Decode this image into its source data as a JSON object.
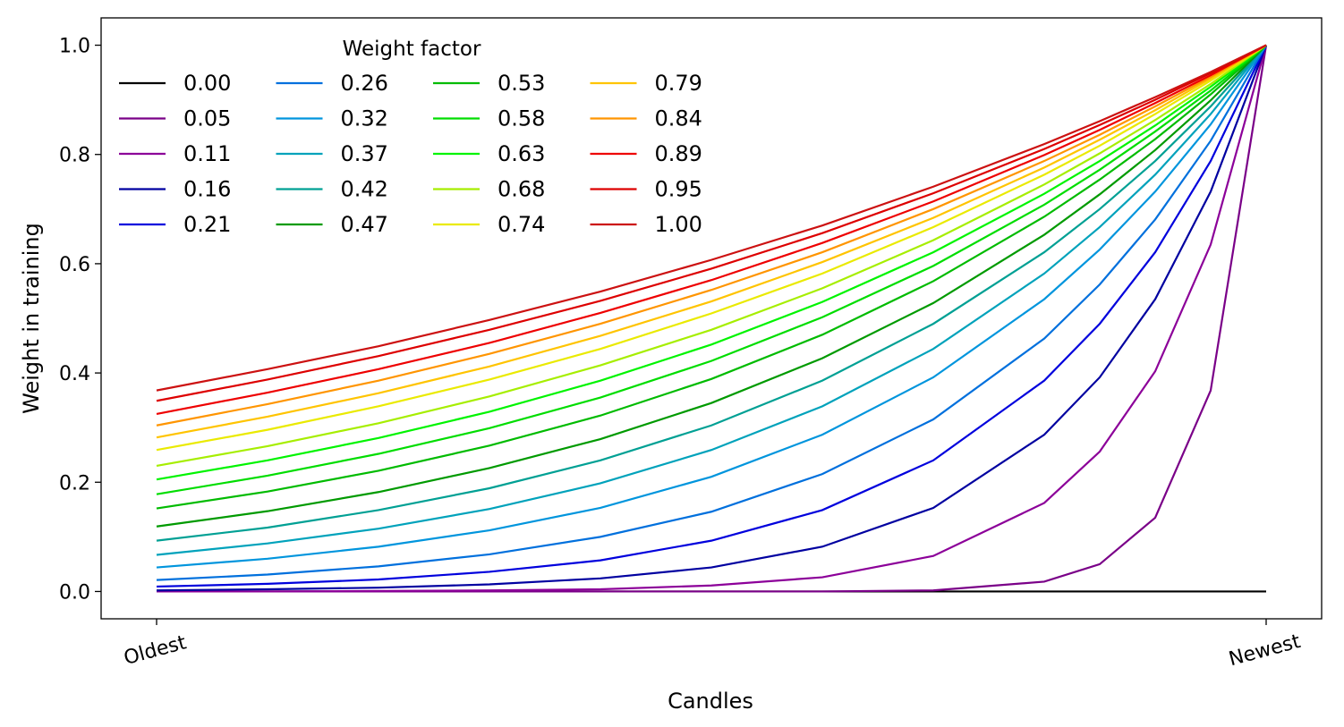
{
  "chart_data": {
    "type": "line",
    "xlabel": "Candles",
    "ylabel": "Weight in training",
    "legend_title": "Weight factor",
    "legend": "upper left",
    "legend_columns": 4,
    "x": [
      0,
      0.1,
      0.2,
      0.3,
      0.4,
      0.5,
      0.6,
      0.7,
      0.8,
      0.85,
      0.9,
      0.95,
      1
    ],
    "xlim": [
      -0.05,
      1.05
    ],
    "xticks": [
      {
        "value": 0,
        "label": "Oldest"
      },
      {
        "value": 1,
        "label": "Newest"
      }
    ],
    "ylim": [
      -0.05,
      1.05
    ],
    "yticks": [
      {
        "value": 0,
        "label": "0.0"
      },
      {
        "value": 0.2,
        "label": "0.2"
      },
      {
        "value": 0.4,
        "label": "0.4"
      },
      {
        "value": 0.6,
        "label": "0.6"
      },
      {
        "value": 0.8,
        "label": "0.8"
      },
      {
        "value": 1,
        "label": "1.0"
      }
    ],
    "series": [
      {
        "name": "0.00",
        "color": "#000000",
        "values": [
          0,
          0,
          0,
          0,
          0,
          0,
          0,
          0,
          0,
          0,
          0,
          0,
          0
        ]
      },
      {
        "name": "0.05",
        "color": "#7a0088",
        "values": [
          0,
          0,
          0,
          0,
          0,
          0,
          0,
          0.002,
          0.018,
          0.05,
          0.135,
          0.368,
          1
        ]
      },
      {
        "name": "0.11",
        "color": "#8c0099",
        "values": [
          0,
          0,
          0.001,
          0.002,
          0.004,
          0.011,
          0.026,
          0.065,
          0.162,
          0.256,
          0.403,
          0.635,
          1
        ]
      },
      {
        "name": "0.16",
        "color": "#0000a0",
        "values": [
          0.002,
          0.004,
          0.007,
          0.013,
          0.024,
          0.044,
          0.082,
          0.153,
          0.287,
          0.392,
          0.535,
          0.732,
          1
        ]
      },
      {
        "name": "0.21",
        "color": "#0000dd",
        "values": [
          0.009,
          0.014,
          0.022,
          0.036,
          0.057,
          0.093,
          0.149,
          0.24,
          0.386,
          0.49,
          0.621,
          0.788,
          1
        ]
      },
      {
        "name": "0.26",
        "color": "#0070dd",
        "values": [
          0.021,
          0.031,
          0.046,
          0.068,
          0.1,
          0.146,
          0.215,
          0.315,
          0.463,
          0.562,
          0.681,
          0.825,
          1
        ]
      },
      {
        "name": "0.32",
        "color": "#0095dd",
        "values": [
          0.044,
          0.06,
          0.082,
          0.112,
          0.153,
          0.21,
          0.287,
          0.392,
          0.535,
          0.626,
          0.732,
          0.855,
          1
        ]
      },
      {
        "name": "0.37",
        "color": "#00a2bb",
        "values": [
          0.067,
          0.088,
          0.115,
          0.151,
          0.198,
          0.259,
          0.339,
          0.444,
          0.582,
          0.667,
          0.763,
          0.874,
          1
        ]
      },
      {
        "name": "0.42",
        "color": "#00a094",
        "values": [
          0.093,
          0.117,
          0.149,
          0.189,
          0.24,
          0.304,
          0.386,
          0.49,
          0.621,
          0.7,
          0.788,
          0.888,
          1
        ]
      },
      {
        "name": "0.47",
        "color": "#009a00",
        "values": [
          0.119,
          0.147,
          0.182,
          0.226,
          0.279,
          0.345,
          0.427,
          0.528,
          0.653,
          0.727,
          0.808,
          0.899,
          1
        ]
      },
      {
        "name": "0.53",
        "color": "#00bb00",
        "values": [
          0.152,
          0.183,
          0.221,
          0.267,
          0.322,
          0.389,
          0.47,
          0.568,
          0.686,
          0.754,
          0.828,
          0.91,
          1
        ]
      },
      {
        "name": "0.58",
        "color": "#00dd00",
        "values": [
          0.178,
          0.212,
          0.252,
          0.299,
          0.355,
          0.422,
          0.502,
          0.596,
          0.708,
          0.772,
          0.842,
          0.917,
          1
        ]
      },
      {
        "name": "0.63",
        "color": "#00f400",
        "values": [
          0.205,
          0.24,
          0.281,
          0.329,
          0.386,
          0.452,
          0.53,
          0.621,
          0.728,
          0.788,
          0.853,
          0.924,
          1
        ]
      },
      {
        "name": "0.68",
        "color": "#a6ee00",
        "values": [
          0.23,
          0.266,
          0.308,
          0.357,
          0.414,
          0.479,
          0.555,
          0.643,
          0.745,
          0.802,
          0.863,
          0.929,
          1
        ]
      },
      {
        "name": "0.74",
        "color": "#eaea00",
        "values": [
          0.259,
          0.296,
          0.339,
          0.388,
          0.444,
          0.509,
          0.582,
          0.667,
          0.763,
          0.816,
          0.874,
          0.935,
          1
        ]
      },
      {
        "name": "0.79",
        "color": "#ffc400",
        "values": [
          0.282,
          0.32,
          0.363,
          0.412,
          0.468,
          0.531,
          0.603,
          0.684,
          0.776,
          0.827,
          0.881,
          0.939,
          1
        ]
      },
      {
        "name": "0.84",
        "color": "#ff9500",
        "values": [
          0.304,
          0.343,
          0.386,
          0.435,
          0.49,
          0.552,
          0.621,
          0.7,
          0.788,
          0.836,
          0.888,
          0.942,
          1
        ]
      },
      {
        "name": "0.89",
        "color": "#ee0000",
        "values": [
          0.325,
          0.364,
          0.407,
          0.455,
          0.51,
          0.57,
          0.638,
          0.714,
          0.799,
          0.845,
          0.894,
          0.945,
          1
        ]
      },
      {
        "name": "0.95",
        "color": "#dd0000",
        "values": [
          0.349,
          0.388,
          0.431,
          0.479,
          0.532,
          0.591,
          0.656,
          0.729,
          0.81,
          0.854,
          0.9,
          0.949,
          1
        ]
      },
      {
        "name": "1.00",
        "color": "#cc1111",
        "values": [
          0.368,
          0.407,
          0.449,
          0.497,
          0.549,
          0.607,
          0.67,
          0.741,
          0.819,
          0.861,
          0.905,
          0.951,
          1
        ]
      }
    ]
  }
}
